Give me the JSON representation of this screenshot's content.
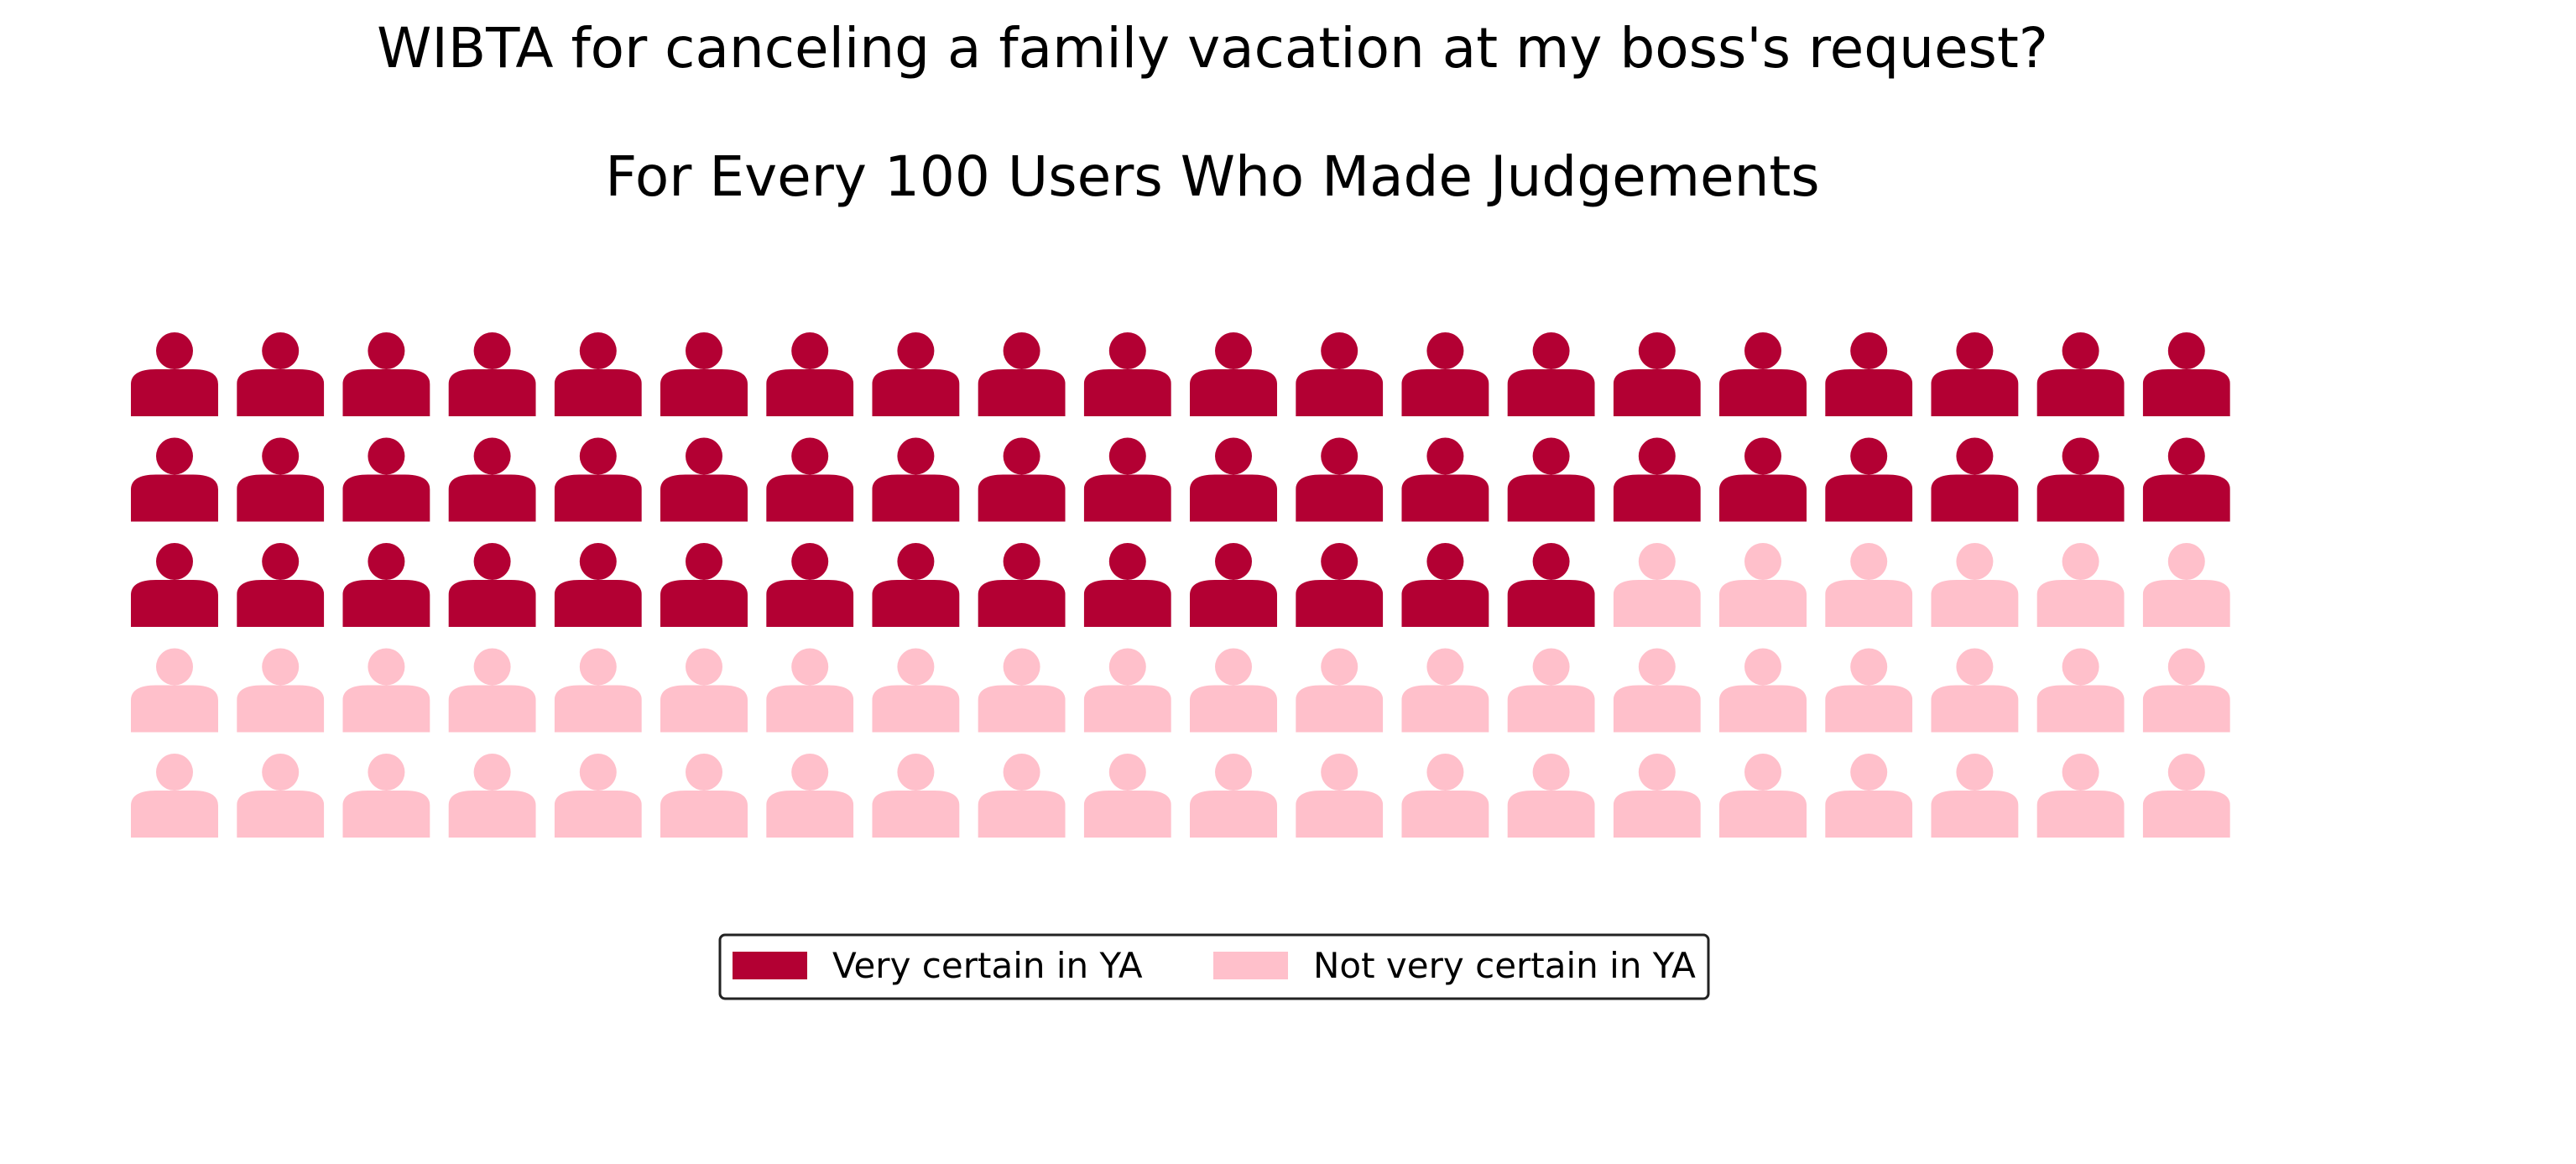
{
  "chart_data": {
    "type": "waffle",
    "title": "WIBTA for canceling a family vacation at my boss's request?",
    "subtitle": "For Every 100 Users Who Made Judgements",
    "rows": 5,
    "columns": 20,
    "icon": "person-icon",
    "series": [
      {
        "name": "Very certain in YA",
        "value": 54,
        "color": "#b30033"
      },
      {
        "name": "Not very certain in YA",
        "value": 46,
        "color": "#ffc0cb"
      }
    ],
    "legend_placement": "bottom-center"
  }
}
